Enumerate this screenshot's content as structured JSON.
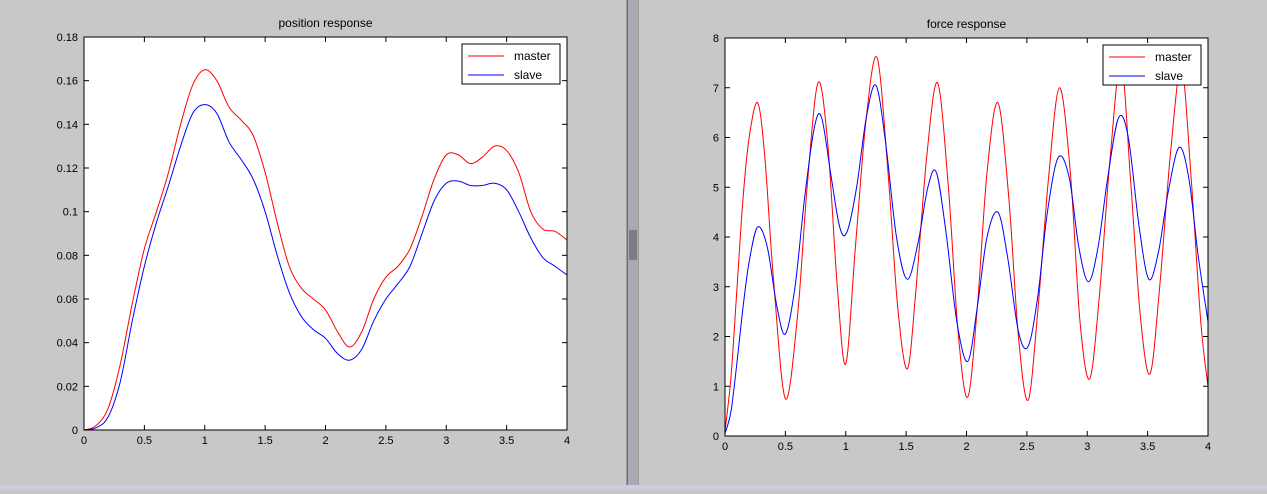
{
  "chart_data": [
    {
      "type": "line",
      "title": "position response",
      "xlabel": "",
      "ylabel": "",
      "xlim": [
        0,
        4
      ],
      "ylim": [
        0,
        0.18
      ],
      "xticks": [
        0,
        0.5,
        1,
        1.5,
        2,
        2.5,
        3,
        3.5,
        4
      ],
      "yticks": [
        0,
        0.02,
        0.04,
        0.06,
        0.08,
        0.1,
        0.12,
        0.14,
        0.16,
        0.18
      ],
      "grid": false,
      "legend": "top-right",
      "series": [
        {
          "name": "master",
          "color": "#ff0000",
          "x": [
            0,
            0.1,
            0.2,
            0.3,
            0.4,
            0.5,
            0.6,
            0.7,
            0.8,
            0.9,
            1.0,
            1.1,
            1.2,
            1.3,
            1.4,
            1.5,
            1.6,
            1.7,
            1.8,
            1.9,
            2.0,
            2.1,
            2.2,
            2.3,
            2.4,
            2.5,
            2.6,
            2.7,
            2.8,
            2.9,
            3.0,
            3.1,
            3.2,
            3.3,
            3.4,
            3.5,
            3.6,
            3.7,
            3.8,
            3.9,
            4.0
          ],
          "y": [
            0,
            0.002,
            0.01,
            0.03,
            0.058,
            0.083,
            0.1,
            0.118,
            0.14,
            0.158,
            0.165,
            0.16,
            0.148,
            0.142,
            0.135,
            0.118,
            0.095,
            0.075,
            0.065,
            0.06,
            0.055,
            0.045,
            0.038,
            0.045,
            0.06,
            0.07,
            0.075,
            0.083,
            0.098,
            0.115,
            0.126,
            0.126,
            0.122,
            0.125,
            0.13,
            0.128,
            0.118,
            0.1,
            0.092,
            0.091,
            0.087
          ]
        },
        {
          "name": "slave",
          "color": "#0000ff",
          "x": [
            0,
            0.1,
            0.2,
            0.3,
            0.4,
            0.5,
            0.6,
            0.7,
            0.8,
            0.9,
            1.0,
            1.1,
            1.2,
            1.3,
            1.4,
            1.5,
            1.6,
            1.7,
            1.8,
            1.9,
            2.0,
            2.1,
            2.2,
            2.3,
            2.4,
            2.5,
            2.6,
            2.7,
            2.8,
            2.9,
            3.0,
            3.1,
            3.2,
            3.3,
            3.4,
            3.5,
            3.6,
            3.7,
            3.8,
            3.9,
            4.0
          ],
          "y": [
            0,
            0.001,
            0.006,
            0.022,
            0.05,
            0.075,
            0.095,
            0.112,
            0.13,
            0.145,
            0.149,
            0.145,
            0.132,
            0.124,
            0.115,
            0.1,
            0.08,
            0.063,
            0.052,
            0.046,
            0.042,
            0.035,
            0.032,
            0.037,
            0.05,
            0.06,
            0.067,
            0.075,
            0.09,
            0.105,
            0.113,
            0.114,
            0.112,
            0.112,
            0.113,
            0.11,
            0.1,
            0.088,
            0.079,
            0.075,
            0.071
          ]
        }
      ]
    },
    {
      "type": "line",
      "title": "force response",
      "xlabel": "",
      "ylabel": "",
      "xlim": [
        0,
        4
      ],
      "ylim": [
        0,
        8
      ],
      "xticks": [
        0,
        0.5,
        1,
        1.5,
        2,
        2.5,
        3,
        3.5,
        4
      ],
      "yticks": [
        0,
        1,
        2,
        3,
        4,
        5,
        6,
        7,
        8
      ],
      "grid": false,
      "legend": "top-right",
      "series": [
        {
          "name": "master",
          "color": "#ff0000",
          "x": [
            0,
            0.05,
            0.1,
            0.15,
            0.2,
            0.27,
            0.33,
            0.4,
            0.5,
            0.6,
            0.68,
            0.77,
            0.85,
            0.93,
            1.0,
            1.08,
            1.17,
            1.26,
            1.35,
            1.43,
            1.51,
            1.58,
            1.67,
            1.76,
            1.85,
            1.93,
            2.01,
            2.09,
            2.17,
            2.26,
            2.35,
            2.43,
            2.51,
            2.59,
            2.68,
            2.77,
            2.86,
            2.94,
            3.02,
            3.1,
            3.19,
            3.28,
            3.36,
            3.44,
            3.52,
            3.6,
            3.69,
            3.78,
            3.86,
            3.94,
            4.0
          ],
          "y": [
            0.1,
            1.2,
            3.0,
            4.8,
            6.0,
            6.7,
            5.6,
            3.2,
            0.75,
            2.4,
            5.0,
            7.1,
            5.9,
            3.0,
            1.45,
            3.8,
            6.4,
            7.6,
            5.3,
            2.6,
            1.35,
            2.9,
            5.6,
            7.1,
            5.0,
            2.1,
            0.78,
            2.6,
            5.3,
            6.7,
            4.8,
            2.0,
            0.72,
            2.5,
            5.2,
            7.0,
            5.3,
            2.3,
            1.15,
            2.8,
            5.6,
            7.5,
            5.1,
            2.4,
            1.25,
            3.0,
            5.7,
            7.4,
            5.2,
            2.3,
            1.0
          ]
        },
        {
          "name": "slave",
          "color": "#0000ff",
          "x": [
            0,
            0.05,
            0.1,
            0.15,
            0.2,
            0.27,
            0.35,
            0.43,
            0.5,
            0.58,
            0.66,
            0.74,
            0.8,
            0.88,
            0.95,
            1.01,
            1.09,
            1.17,
            1.25,
            1.33,
            1.42,
            1.51,
            1.6,
            1.68,
            1.75,
            1.83,
            1.92,
            2.01,
            2.09,
            2.17,
            2.26,
            2.34,
            2.43,
            2.51,
            2.59,
            2.67,
            2.76,
            2.85,
            2.93,
            3.01,
            3.09,
            3.17,
            3.26,
            3.34,
            3.43,
            3.51,
            3.59,
            3.67,
            3.76,
            3.84,
            3.92,
            4.0
          ],
          "y": [
            0.05,
            0.5,
            1.5,
            2.6,
            3.5,
            4.2,
            3.8,
            2.6,
            2.05,
            3.0,
            4.8,
            6.2,
            6.4,
            5.2,
            4.2,
            4.1,
            5.0,
            6.4,
            7.05,
            5.9,
            4.0,
            3.15,
            3.9,
            5.0,
            5.3,
            4.1,
            2.3,
            1.5,
            2.6,
            4.0,
            4.5,
            3.6,
            2.1,
            1.8,
            2.8,
            4.5,
            5.6,
            5.2,
            3.8,
            3.1,
            3.8,
            5.2,
            6.4,
            6.0,
            4.2,
            3.15,
            3.7,
            4.9,
            5.8,
            5.2,
            3.6,
            2.3
          ]
        }
      ]
    }
  ]
}
